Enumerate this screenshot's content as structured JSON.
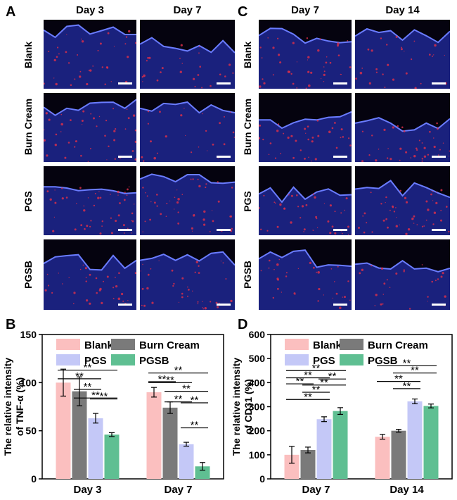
{
  "panels": {
    "A": {
      "letter": "A",
      "columns": [
        "Day 3",
        "Day 7"
      ],
      "rows": [
        "Blank",
        "Burn Cream",
        "PGS",
        "PGSB"
      ]
    },
    "C": {
      "letter": "C",
      "columns": [
        "Day 7",
        "Day 14"
      ],
      "rows": [
        "Blank",
        "Burn Cream",
        "PGS",
        "PGSB"
      ]
    },
    "B": {
      "letter": "B"
    },
    "D": {
      "letter": "D"
    }
  },
  "colors": {
    "Blank": "#fbbfbf",
    "Burn Cream": "#7a7a7a",
    "PGS": "#c4c8f7",
    "PGSB": "#5fbf92",
    "dapi_blue": "#2b3bd8",
    "stain_red": "#e0304a"
  },
  "chart_data": [
    {
      "type": "bar",
      "ylabel": "The relative intensity of TNF-α (%)",
      "ylim": [
        0,
        150
      ],
      "yticks": [
        0,
        50,
        100,
        150
      ],
      "categories": [
        "Day 3",
        "Day 7"
      ],
      "legend": "top-right",
      "series": [
        {
          "name": "Blank",
          "values": [
            100,
            90
          ],
          "errors": [
            14,
            5
          ]
        },
        {
          "name": "Burn Cream",
          "values": [
            91,
            74
          ],
          "errors": [
            15,
            6
          ]
        },
        {
          "name": "PGS",
          "values": [
            63,
            36
          ],
          "errors": [
            5,
            2
          ]
        },
        {
          "name": "PGSB",
          "values": [
            46,
            13
          ],
          "errors": [
            2,
            4
          ]
        }
      ],
      "significance_label": "**"
    },
    {
      "type": "bar",
      "ylabel": "The relative intensity of CD31 (%)",
      "ylim": [
        0,
        600
      ],
      "yticks": [
        0,
        100,
        200,
        300,
        400,
        500,
        600
      ],
      "categories": [
        "Day 7",
        "Day 14"
      ],
      "legend": "top-right",
      "series": [
        {
          "name": "Blank",
          "values": [
            100,
            175
          ],
          "errors": [
            35,
            10
          ]
        },
        {
          "name": "Burn Cream",
          "values": [
            120,
            200
          ],
          "errors": [
            12,
            6
          ]
        },
        {
          "name": "PGS",
          "values": [
            248,
            322
          ],
          "errors": [
            10,
            10
          ]
        },
        {
          "name": "PGSB",
          "values": [
            282,
            303
          ],
          "errors": [
            14,
            8
          ]
        }
      ],
      "significance_label": "**"
    }
  ]
}
